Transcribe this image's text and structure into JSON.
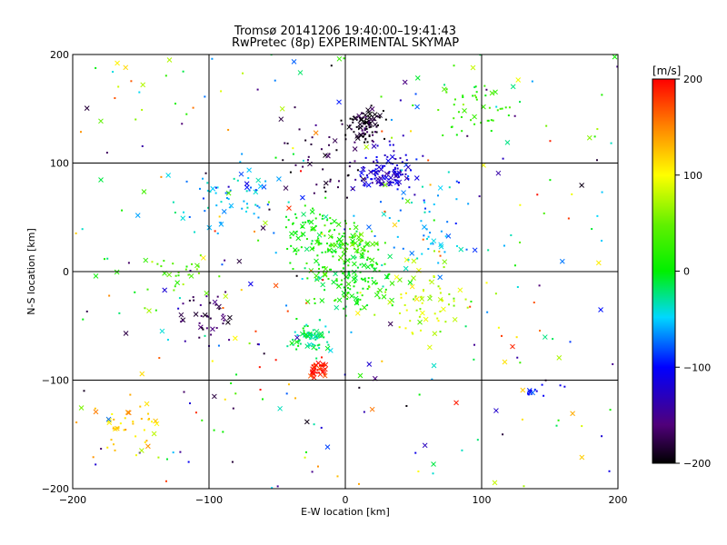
{
  "chart_data": {
    "type": "scatter",
    "title": "Tromsø 20141206 19:40:00–19:41:43",
    "subtitle": "RwPretec (8p) EXPERIMENTAL SKYMAP",
    "xlabel": "E-W location [km]",
    "ylabel": "N-S location [km]",
    "xlim": [
      -200,
      200
    ],
    "ylim": [
      -200,
      200
    ],
    "x_ticks": [
      -200,
      -100,
      0,
      100,
      200
    ],
    "y_ticks": [
      -200,
      -100,
      0,
      100,
      200
    ],
    "grid": true,
    "colorbar": {
      "label": "[m/s]",
      "range": [
        -200,
        200
      ],
      "ticks": [
        200,
        100,
        0,
        -100,
        -200
      ],
      "colormap": "rainbow (black-purple-blue-cyan-green-yellow-red)"
    },
    "markers": {
      "small": "dot",
      "large": "cross"
    },
    "clusters": [
      {
        "x": 15,
        "y": 135,
        "velocity": -190,
        "spread": 14,
        "count": 90
      },
      {
        "x": 30,
        "y": 95,
        "velocity": -120,
        "spread": 20,
        "count": 110
      },
      {
        "x": -15,
        "y": 100,
        "velocity": -180,
        "spread": 35,
        "count": 45
      },
      {
        "x": -20,
        "y": 30,
        "velocity": 10,
        "spread": 30,
        "count": 110
      },
      {
        "x": 10,
        "y": 25,
        "velocity": 40,
        "spread": 15,
        "count": 50
      },
      {
        "x": 5,
        "y": -5,
        "velocity": 5,
        "spread": 30,
        "count": 140
      },
      {
        "x": -25,
        "y": -60,
        "velocity": -20,
        "spread": 14,
        "count": 70
      },
      {
        "x": -20,
        "y": -90,
        "velocity": 190,
        "spread": 8,
        "count": 45
      },
      {
        "x": -100,
        "y": -40,
        "velocity": -170,
        "spread": 25,
        "count": 40
      },
      {
        "x": -120,
        "y": 0,
        "velocity": 40,
        "spread": 20,
        "count": 25
      },
      {
        "x": 90,
        "y": 150,
        "velocity": 30,
        "spread": 30,
        "count": 45
      },
      {
        "x": 140,
        "y": -110,
        "velocity": -100,
        "spread": 8,
        "count": 10
      },
      {
        "x": -160,
        "y": -140,
        "velocity": 120,
        "spread": 30,
        "count": 40
      },
      {
        "x": -80,
        "y": 70,
        "velocity": -60,
        "spread": 35,
        "count": 60
      },
      {
        "x": 60,
        "y": -30,
        "velocity": 80,
        "spread": 35,
        "count": 70
      },
      {
        "x": 60,
        "y": 40,
        "velocity": -60,
        "spread": 40,
        "count": 60
      },
      {
        "x": 0,
        "y": 0,
        "velocity": 0,
        "spread": 150,
        "count": 320,
        "mode": "uniform"
      }
    ]
  }
}
